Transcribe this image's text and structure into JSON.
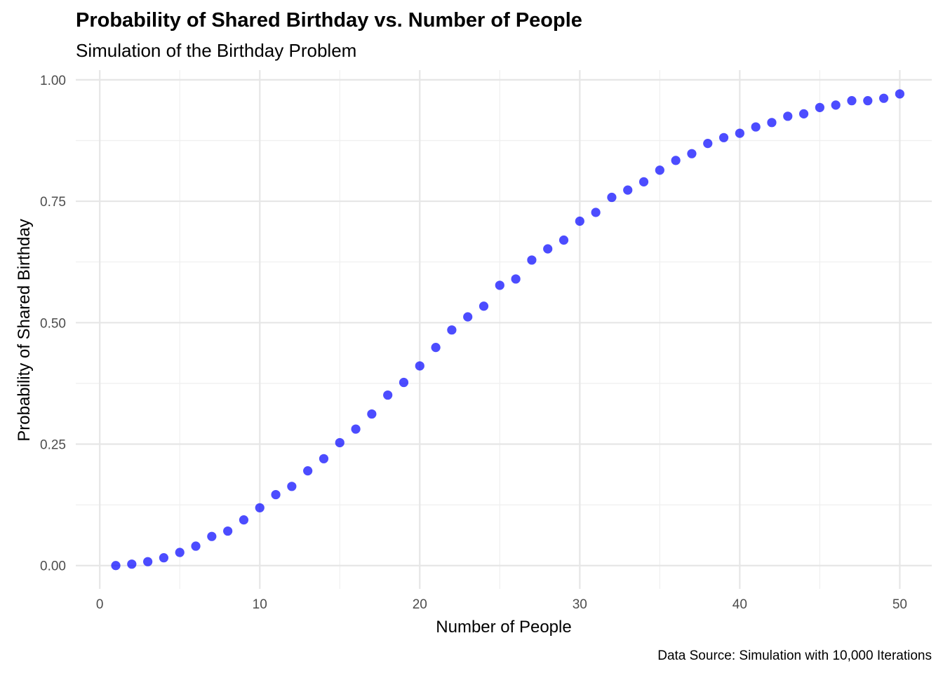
{
  "chart_data": {
    "type": "scatter",
    "title": "Probability of Shared Birthday vs. Number of People",
    "subtitle": "Simulation of the Birthday Problem",
    "xlabel": "Number of People",
    "ylabel": "Probability of Shared Birthday",
    "caption": "Data Source: Simulation with 10,000 Iterations",
    "xlim": [
      -1.5,
      52
    ],
    "ylim": [
      -0.048,
      1.02
    ],
    "x_ticks": [
      0,
      10,
      20,
      30,
      40,
      50
    ],
    "x_tick_labels": [
      "0",
      "10",
      "20",
      "30",
      "40",
      "50"
    ],
    "y_ticks": [
      0,
      0.25,
      0.5,
      0.75,
      1.0
    ],
    "y_tick_labels": [
      "0.00",
      "0.25",
      "0.50",
      "0.75",
      "1.00"
    ],
    "grid": true,
    "point_color": "#0000ff",
    "point_opacity": 0.7,
    "x": [
      1,
      2,
      3,
      4,
      5,
      6,
      7,
      8,
      9,
      10,
      11,
      12,
      13,
      14,
      15,
      16,
      17,
      18,
      19,
      20,
      21,
      22,
      23,
      24,
      25,
      26,
      27,
      28,
      29,
      30,
      31,
      32,
      33,
      34,
      35,
      36,
      37,
      38,
      39,
      40,
      41,
      42,
      43,
      44,
      45,
      46,
      47,
      48,
      49,
      50
    ],
    "y": [
      0.0,
      0.003,
      0.008,
      0.016,
      0.027,
      0.04,
      0.06,
      0.071,
      0.094,
      0.119,
      0.146,
      0.163,
      0.195,
      0.22,
      0.253,
      0.281,
      0.312,
      0.351,
      0.377,
      0.411,
      0.449,
      0.485,
      0.512,
      0.534,
      0.577,
      0.59,
      0.629,
      0.652,
      0.67,
      0.709,
      0.727,
      0.758,
      0.773,
      0.79,
      0.814,
      0.834,
      0.848,
      0.869,
      0.881,
      0.89,
      0.903,
      0.912,
      0.925,
      0.93,
      0.943,
      0.948,
      0.957,
      0.957,
      0.962,
      0.971
    ]
  }
}
